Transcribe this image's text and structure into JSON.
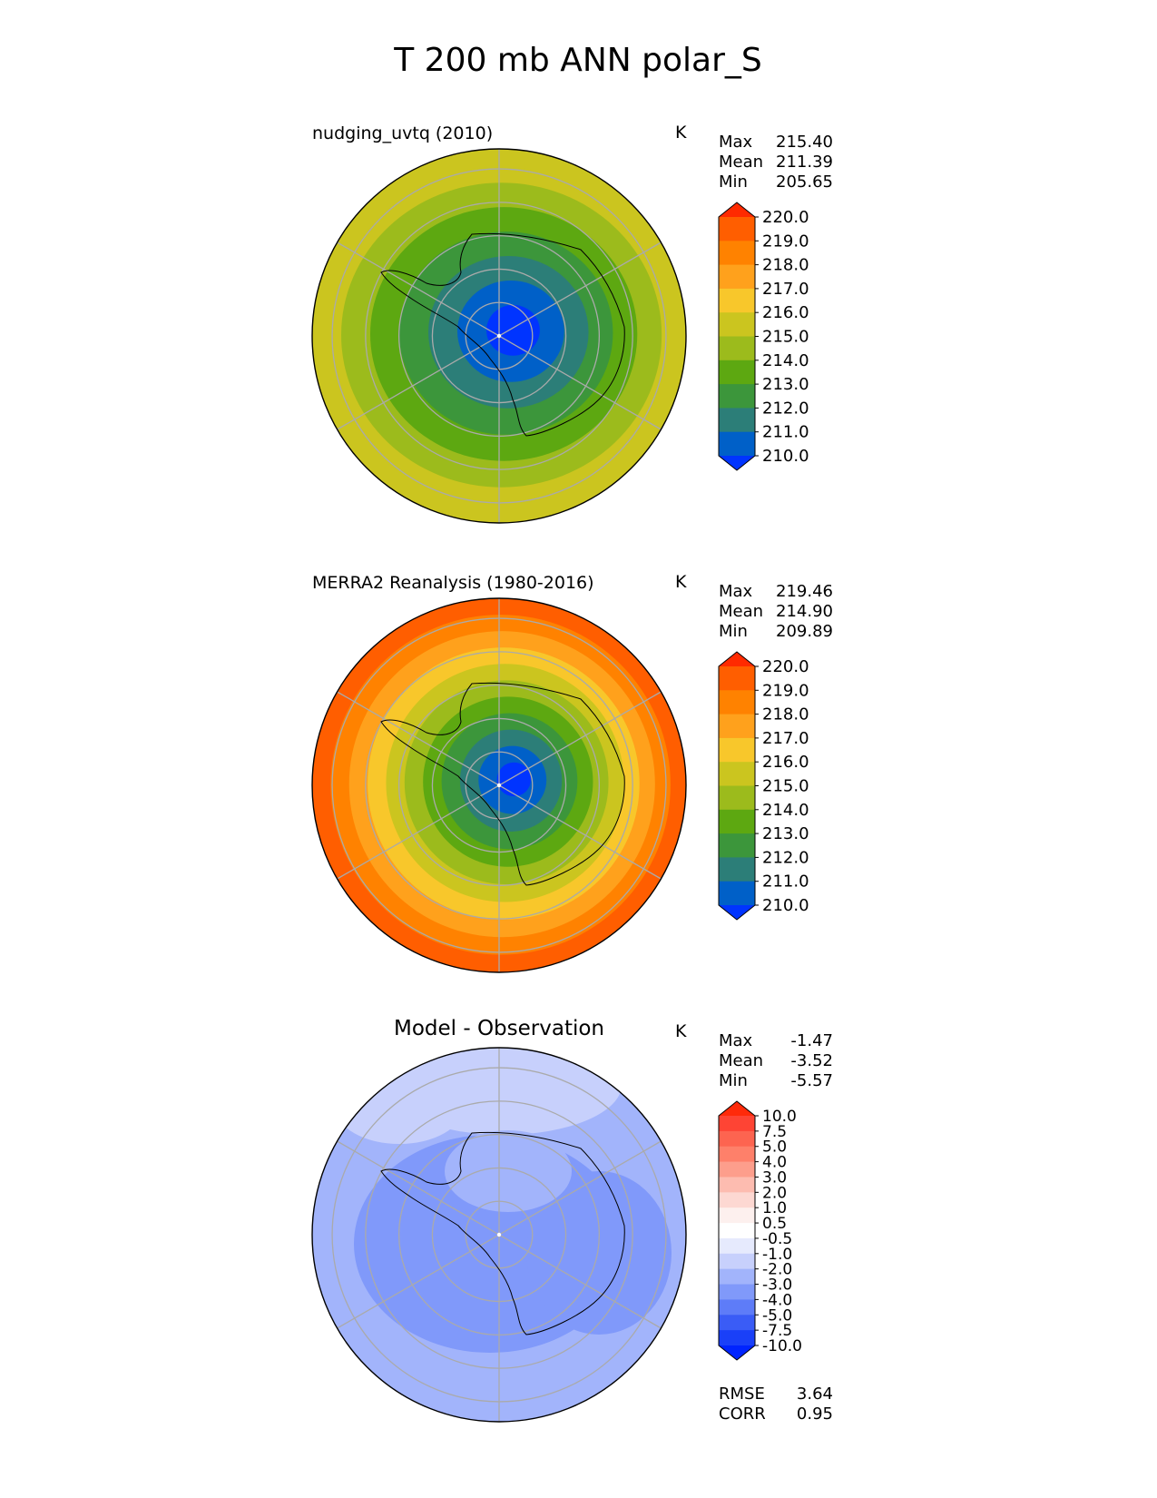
{
  "figure_title": "T 200 mb ANN polar_S",
  "chart_data": [
    {
      "type": "heatmap",
      "projection": "south-polar-stereographic",
      "title": "nudging_uvtq (2010)",
      "units": "K",
      "stats": [
        {
          "label": "Max",
          "value": "215.40"
        },
        {
          "label": "Mean",
          "value": "211.39"
        },
        {
          "label": "Min",
          "value": "205.65"
        }
      ],
      "colorbar": {
        "levels": [
          "220.0",
          "219.0",
          "218.0",
          "217.0",
          "216.0",
          "215.0",
          "214.0",
          "213.0",
          "212.0",
          "211.0",
          "210.0"
        ],
        "colors": [
          "#ff2a00",
          "#ff5e00",
          "#ff8200",
          "#ffa11c",
          "#f8c72b",
          "#cbc51f",
          "#9cbb1c",
          "#5da811",
          "#3c963b",
          "#2c7e78",
          "#0060c8",
          "#0034ff"
        ],
        "extend": "both"
      },
      "bands_center_to_edge": [
        {
          "color": "#0034ff",
          "range": "<210"
        },
        {
          "color": "#0060c8",
          "range": "210-211"
        },
        {
          "color": "#2c7e78",
          "range": "211-212"
        },
        {
          "color": "#3c963b",
          "range": "212-213"
        },
        {
          "color": "#5da811",
          "range": "213-214"
        },
        {
          "color": "#9cbb1c",
          "range": "214-215"
        },
        {
          "color": "#cbc51f",
          "range": "215-216"
        }
      ]
    },
    {
      "type": "heatmap",
      "projection": "south-polar-stereographic",
      "title": "MERRA2 Reanalysis (1980-2016)",
      "units": "K",
      "stats": [
        {
          "label": "Max",
          "value": "219.46"
        },
        {
          "label": "Mean",
          "value": "214.90"
        },
        {
          "label": "Min",
          "value": "209.89"
        }
      ],
      "colorbar": {
        "levels": [
          "220.0",
          "219.0",
          "218.0",
          "217.0",
          "216.0",
          "215.0",
          "214.0",
          "213.0",
          "212.0",
          "211.0",
          "210.0"
        ],
        "colors": [
          "#ff2a00",
          "#ff5e00",
          "#ff8200",
          "#ffa11c",
          "#f8c72b",
          "#cbc51f",
          "#9cbb1c",
          "#5da811",
          "#3c963b",
          "#2c7e78",
          "#0060c8",
          "#0034ff"
        ],
        "extend": "both"
      },
      "bands_center_to_edge": [
        {
          "color": "#0034ff",
          "range": "<210"
        },
        {
          "color": "#0060c8",
          "range": "210-211"
        },
        {
          "color": "#2c7e78",
          "range": "211-212"
        },
        {
          "color": "#3c963b",
          "range": "212-213"
        },
        {
          "color": "#5da811",
          "range": "213-214"
        },
        {
          "color": "#9cbb1c",
          "range": "214-215"
        },
        {
          "color": "#cbc51f",
          "range": "215-216"
        },
        {
          "color": "#f8c72b",
          "range": "216-217"
        },
        {
          "color": "#ffa11c",
          "range": "217-218"
        },
        {
          "color": "#ff8200",
          "range": "218-219"
        },
        {
          "color": "#ff5e00",
          "range": "219-220"
        }
      ]
    },
    {
      "type": "heatmap",
      "projection": "south-polar-stereographic",
      "title": "Model - Observation",
      "units": "K",
      "stats": [
        {
          "label": "Max",
          "value": "-1.47"
        },
        {
          "label": "Mean",
          "value": "-3.52"
        },
        {
          "label": "Min",
          "value": "-5.57"
        }
      ],
      "colorbar": {
        "levels": [
          "10.0",
          "7.5",
          "5.0",
          "4.0",
          "3.0",
          "2.0",
          "1.0",
          "0.5",
          "-0.5",
          "-1.0",
          "-2.0",
          "-3.0",
          "-4.0",
          "-5.0",
          "-7.5",
          "-10.0"
        ],
        "colors": [
          "#ff2a0a",
          "#fe4434",
          "#fd6450",
          "#fe806a",
          "#fd9e8c",
          "#fdbcb0",
          "#fdd8d2",
          "#fdf0ee",
          "#ffffff",
          "#e6eafd",
          "#c7d0fc",
          "#a2b4fb",
          "#8099fa",
          "#5e7cf8",
          "#3a5cf6",
          "#1a40f8",
          "#0024ff"
        ],
        "extend": "both"
      },
      "summary": [
        {
          "label": "RMSE",
          "value": "3.64"
        },
        {
          "label": "CORR",
          "value": "0.95"
        }
      ]
    }
  ]
}
